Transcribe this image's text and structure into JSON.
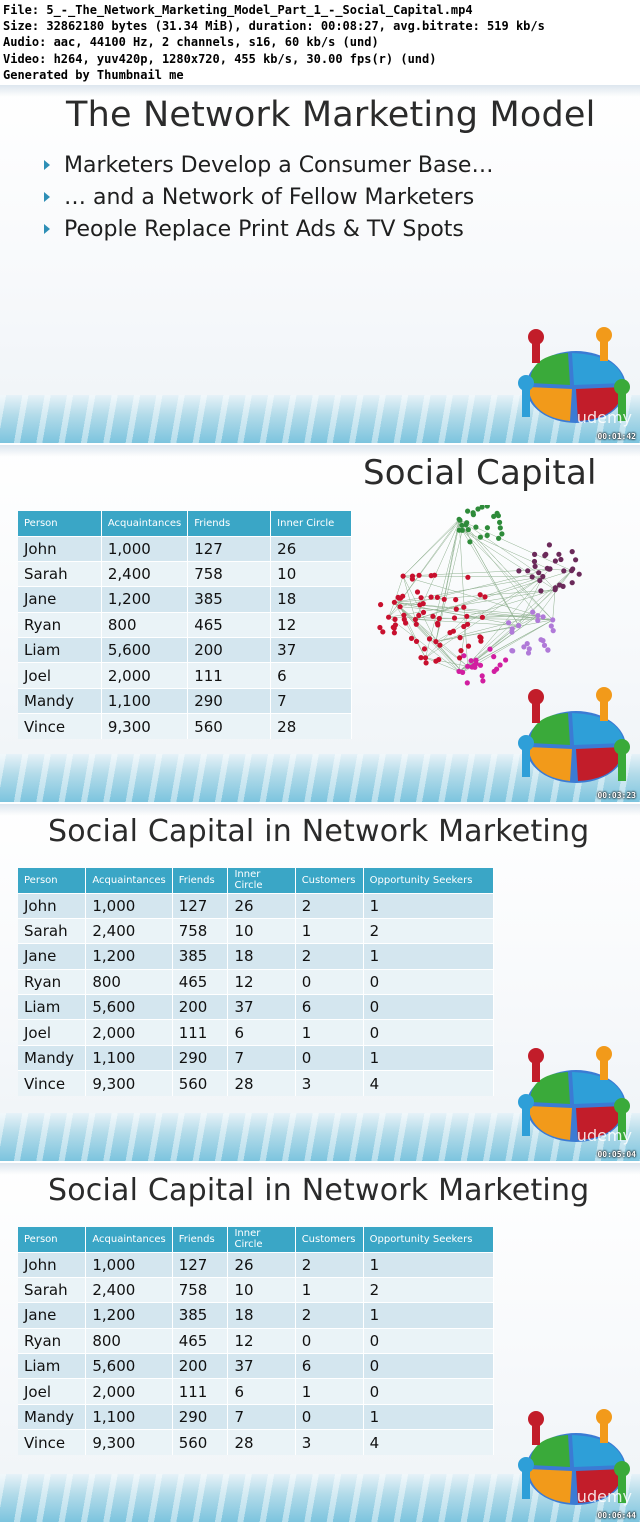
{
  "header": {
    "lines": [
      "File: 5_-_The_Network_Marketing_Model_Part_1_-_Social_Capital.mp4",
      "Size: 32862180 bytes (31.34 MiB), duration: 00:08:27, avg.bitrate: 519 kb/s",
      "Audio: aac, 44100 Hz, 2 channels, s16, 60 kb/s (und)",
      "Video: h264, yuv420p, 1280x720, 455 kb/s, 30.00 fps(r) (und)",
      "Generated by Thumbnail me"
    ]
  },
  "slide1": {
    "title": "The Network Marketing Model",
    "bullets": [
      "Marketers Develop a Consumer Base…",
      "… and a Network of Fellow Marketers",
      "People Replace Print Ads & TV Spots"
    ],
    "brand": "udemy",
    "timestamp": "00:01:42"
  },
  "slide2": {
    "title": "Social Capital",
    "table": {
      "headers": [
        "Person",
        "Acquaintances",
        "Friends",
        "Inner Circle"
      ],
      "rows": [
        [
          "John",
          "1,000",
          "127",
          "26"
        ],
        [
          "Sarah",
          "2,400",
          "758",
          "10"
        ],
        [
          "Jane",
          "1,200",
          "385",
          "18"
        ],
        [
          "Ryan",
          "800",
          "465",
          "12"
        ],
        [
          "Liam",
          "5,600",
          "200",
          "37"
        ],
        [
          "Joel",
          "2,000",
          "111",
          "6"
        ],
        [
          "Mandy",
          "1,100",
          "290",
          "7"
        ],
        [
          "Vince",
          "9,300",
          "560",
          "28"
        ]
      ]
    },
    "timestamp": "00:03:23"
  },
  "slide3": {
    "title": "Social Capital in Network Marketing",
    "table": {
      "headers": [
        "Person",
        "Acquaintances",
        "Friends",
        "Inner Circle",
        "Customers",
        "Opportunity Seekers"
      ],
      "rows": [
        [
          "John",
          "1,000",
          "127",
          "26",
          "2",
          "1"
        ],
        [
          "Sarah",
          "2,400",
          "758",
          "10",
          "1",
          "2"
        ],
        [
          "Jane",
          "1,200",
          "385",
          "18",
          "2",
          "1"
        ],
        [
          "Ryan",
          "800",
          "465",
          "12",
          "0",
          "0"
        ],
        [
          "Liam",
          "5,600",
          "200",
          "37",
          "6",
          "0"
        ],
        [
          "Joel",
          "2,000",
          "111",
          "6",
          "1",
          "0"
        ],
        [
          "Mandy",
          "1,100",
          "290",
          "7",
          "0",
          "1"
        ],
        [
          "Vince",
          "9,300",
          "560",
          "28",
          "3",
          "4"
        ]
      ]
    },
    "brand": "udemy",
    "timestamp": "00:05:04"
  },
  "slide4": {
    "title": "Social Capital in Network Marketing",
    "table": {
      "headers": [
        "Person",
        "Acquaintances",
        "Friends",
        "Inner Circle",
        "Customers",
        "Opportunity Seekers"
      ],
      "rows": [
        [
          "John",
          "1,000",
          "127",
          "26",
          "2",
          "1"
        ],
        [
          "Sarah",
          "2,400",
          "758",
          "10",
          "1",
          "2"
        ],
        [
          "Jane",
          "1,200",
          "385",
          "18",
          "2",
          "1"
        ],
        [
          "Ryan",
          "800",
          "465",
          "12",
          "0",
          "0"
        ],
        [
          "Liam",
          "5,600",
          "200",
          "37",
          "6",
          "0"
        ],
        [
          "Joel",
          "2,000",
          "111",
          "6",
          "1",
          "0"
        ],
        [
          "Mandy",
          "1,100",
          "290",
          "7",
          "0",
          "1"
        ],
        [
          "Vince",
          "9,300",
          "560",
          "28",
          "3",
          "4"
        ]
      ]
    },
    "brand": "udemy",
    "timestamp": "00:06:44"
  },
  "colors": {
    "table_header": "#3aa6c6",
    "row_odd": "#d4e6ef",
    "row_even": "#eaf3f7",
    "bullet": "#2e8fb6",
    "network_red": "#c8102e",
    "network_green": "#2e8b3a",
    "network_purple": "#6b2a5a",
    "network_violet": "#b07ad8",
    "network_magenta": "#d11ea0"
  }
}
